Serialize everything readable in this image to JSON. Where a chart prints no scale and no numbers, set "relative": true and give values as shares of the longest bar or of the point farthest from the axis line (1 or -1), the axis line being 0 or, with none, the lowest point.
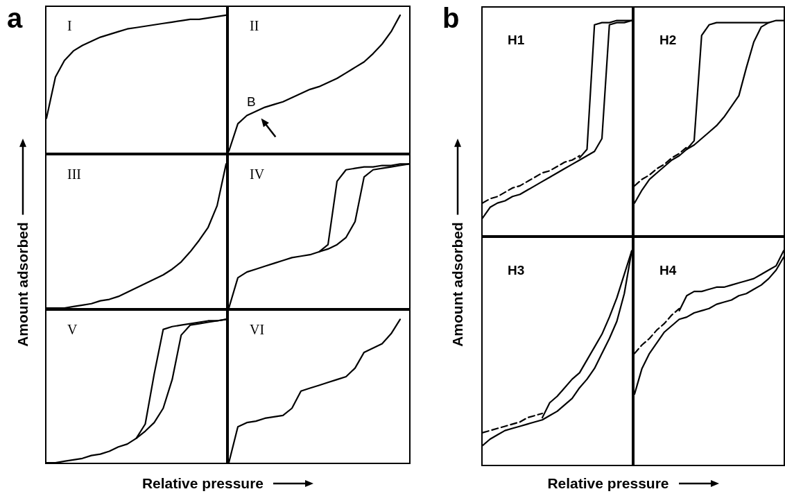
{
  "chart_data": [
    {
      "type": "line",
      "title": "I",
      "relative": true,
      "marker": "none",
      "annotations": [
        "a"
      ],
      "ylabel": "Amount adsorbed",
      "categories": [
        null,
        null,
        null,
        null,
        null,
        null,
        null,
        null,
        null,
        null,
        null,
        null,
        null,
        null,
        null,
        null,
        null,
        null,
        null,
        null,
        null
      ],
      "series": [
        {
          "color": "#000000",
          "line_style": "solid",
          "values": [
            0.25,
            0.55,
            0.67,
            0.74,
            0.78,
            0.81,
            0.84,
            0.86,
            0.88,
            0.9,
            0.91,
            0.92,
            0.93,
            0.94,
            0.95,
            0.96,
            0.97,
            0.97,
            0.98,
            0.99,
            1
          ]
        }
      ]
    },
    {
      "type": "line",
      "title": "II",
      "relative": true,
      "marker": "none",
      "annotations": [
        "B"
      ],
      "categories": [
        null,
        null,
        null,
        null,
        null,
        null,
        null,
        null,
        null,
        null,
        null,
        null,
        null,
        null,
        null,
        null,
        null,
        null,
        null,
        null,
        null
      ],
      "series": [
        {
          "color": "#000000",
          "line_style": "solid",
          "values": [
            0.01,
            0.21,
            0.27,
            0.3,
            0.33,
            0.35,
            0.37,
            0.4,
            0.43,
            0.46,
            0.48,
            0.51,
            0.54,
            0.58,
            0.62,
            0.66,
            0.72,
            0.79,
            0.88,
            1,
            null
          ]
        }
      ]
    },
    {
      "type": "line",
      "title": "III",
      "relative": true,
      "marker": "none",
      "categories": [
        null,
        null,
        null,
        null,
        null,
        null,
        null,
        null,
        null,
        null,
        null,
        null,
        null,
        null,
        null,
        null,
        null,
        null,
        null,
        null,
        null
      ],
      "series": [
        {
          "color": "#000000",
          "line_style": "solid",
          "values": [
            0,
            0,
            0,
            0.01,
            0.02,
            0.03,
            0.05,
            0.06,
            0.08,
            0.11,
            0.14,
            0.17,
            0.2,
            0.23,
            0.27,
            0.32,
            0.39,
            0.47,
            0.56,
            0.71,
            1
          ]
        }
      ]
    },
    {
      "type": "line",
      "title": "IV",
      "relative": true,
      "marker": "none",
      "categories": [
        null,
        null,
        null,
        null,
        null,
        null,
        null,
        null,
        null,
        null,
        null,
        null,
        null,
        null,
        null,
        null,
        null,
        null,
        null,
        null,
        null
      ],
      "series": [
        {
          "color": "#000000",
          "line_style": "solid",
          "values": [
            0,
            0.21,
            0.25,
            0.27,
            0.29,
            0.31,
            0.33,
            0.35,
            0.36,
            0.37,
            0.39,
            0.41,
            0.44,
            0.49,
            0.6,
            0.91,
            0.96,
            0.97,
            0.98,
            0.99,
            1
          ]
        },
        {
          "color": "#000000",
          "line_style": "solid",
          "values": [
            null,
            null,
            null,
            null,
            null,
            null,
            null,
            null,
            null,
            null,
            0.39,
            0.44,
            0.88,
            0.96,
            0.97,
            0.98,
            0.98,
            0.99,
            0.99,
            1,
            1
          ]
        }
      ]
    },
    {
      "type": "line",
      "title": "V",
      "relative": true,
      "marker": "none",
      "xlabel": "Relative pressure",
      "categories": [
        null,
        null,
        null,
        null,
        null,
        null,
        null,
        null,
        null,
        null,
        null,
        null,
        null,
        null,
        null,
        null,
        null,
        null,
        null,
        null,
        null
      ],
      "series": [
        {
          "color": "#000000",
          "line_style": "solid",
          "values": [
            0,
            0,
            0.01,
            0.02,
            0.03,
            0.05,
            0.06,
            0.08,
            0.11,
            0.13,
            0.17,
            0.22,
            0.28,
            0.38,
            0.58,
            0.89,
            0.96,
            0.97,
            0.98,
            0.99,
            1
          ]
        },
        {
          "color": "#000000",
          "line_style": "solid",
          "values": [
            null,
            null,
            null,
            null,
            null,
            null,
            null,
            null,
            null,
            null,
            0.17,
            0.27,
            0.62,
            0.93,
            0.95,
            0.96,
            0.97,
            0.98,
            0.99,
            0.99,
            1
          ]
        }
      ]
    },
    {
      "type": "line",
      "title": "VI",
      "relative": true,
      "marker": "none",
      "categories": [
        null,
        null,
        null,
        null,
        null,
        null,
        null,
        null,
        null,
        null,
        null,
        null,
        null,
        null,
        null,
        null,
        null,
        null,
        null,
        null,
        null
      ],
      "series": [
        {
          "color": "#000000",
          "line_style": "solid",
          "values": [
            0,
            0.25,
            0.28,
            0.29,
            0.31,
            0.32,
            0.33,
            0.38,
            0.5,
            0.52,
            0.54,
            0.56,
            0.58,
            0.6,
            0.66,
            0.77,
            0.8,
            0.83,
            0.9,
            1,
            null
          ]
        }
      ]
    },
    {
      "type": "line",
      "title": "H1",
      "relative": true,
      "marker": "none",
      "annotations": [
        "b"
      ],
      "ylabel": "Amount adsorbed",
      "categories": [
        null,
        null,
        null,
        null,
        null,
        null,
        null,
        null,
        null,
        null,
        null,
        null,
        null,
        null,
        null,
        null,
        null,
        null,
        null,
        null,
        null
      ],
      "series": [
        {
          "color": "#000000",
          "line_style": "solid",
          "values": [
            0.08,
            0.13,
            0.15,
            0.16,
            0.18,
            0.19,
            0.21,
            0.23,
            0.25,
            0.27,
            0.29,
            0.31,
            0.33,
            0.35,
            0.37,
            0.39,
            0.45,
            0.98,
            0.99,
            0.99,
            1
          ]
        },
        {
          "color": "#000000",
          "line_style": "solid",
          "values": [
            null,
            null,
            null,
            null,
            null,
            null,
            null,
            null,
            null,
            null,
            null,
            null,
            null,
            0.36,
            0.4,
            0.98,
            0.99,
            0.99,
            1,
            1,
            1
          ]
        },
        {
          "color": "#000000",
          "line_style": "dashed",
          "values": [
            0.15,
            0.17,
            0.18,
            0.2,
            0.22,
            0.23,
            0.25,
            0.27,
            0.29,
            0.3,
            0.32,
            0.34,
            0.35,
            0.37,
            null,
            null,
            null,
            null,
            null,
            null,
            null
          ]
        }
      ]
    },
    {
      "type": "line",
      "title": "H2",
      "relative": true,
      "marker": "none",
      "categories": [
        null,
        null,
        null,
        null,
        null,
        null,
        null,
        null,
        null,
        null,
        null,
        null,
        null,
        null,
        null,
        null,
        null,
        null,
        null,
        null,
        null
      ],
      "series": [
        {
          "color": "#000000",
          "line_style": "solid",
          "values": [
            0.15,
            0.21,
            0.26,
            0.29,
            0.32,
            0.35,
            0.37,
            0.4,
            0.42,
            0.45,
            0.48,
            0.51,
            0.55,
            0.6,
            0.65,
            0.78,
            0.9,
            0.97,
            0.99,
            1,
            1
          ]
        },
        {
          "color": "#000000",
          "line_style": "solid",
          "values": [
            null,
            null,
            null,
            null,
            null,
            null,
            null,
            0.4,
            0.44,
            0.93,
            0.98,
            0.99,
            0.99,
            0.99,
            0.99,
            0.99,
            0.99,
            0.99,
            0.99,
            null,
            null
          ]
        },
        {
          "color": "#000000",
          "line_style": "dashed",
          "values": [
            0.23,
            0.26,
            0.28,
            0.31,
            0.33,
            0.36,
            0.38,
            0.41,
            null,
            null,
            null,
            null,
            null,
            null,
            null,
            null,
            null,
            null,
            null,
            null,
            null
          ]
        }
      ]
    },
    {
      "type": "line",
      "title": "H3",
      "relative": true,
      "marker": "none",
      "xlabel": "Relative pressure",
      "categories": [
        null,
        null,
        null,
        null,
        null,
        null,
        null,
        null,
        null,
        null,
        null,
        null,
        null,
        null,
        null,
        null,
        null,
        null,
        null,
        null,
        null
      ],
      "series": [
        {
          "color": "#000000",
          "line_style": "solid",
          "values": [
            0.09,
            0.12,
            0.14,
            0.16,
            0.17,
            0.18,
            0.19,
            0.2,
            0.21,
            0.23,
            0.25,
            0.28,
            0.31,
            0.36,
            0.4,
            0.45,
            0.52,
            0.59,
            0.67,
            0.8,
            1
          ]
        },
        {
          "color": "#000000",
          "line_style": "solid",
          "values": [
            null,
            null,
            null,
            null,
            null,
            null,
            null,
            null,
            0.22,
            0.29,
            0.32,
            0.36,
            0.4,
            0.43,
            0.49,
            0.55,
            0.61,
            0.69,
            0.78,
            0.89,
            1
          ]
        },
        {
          "color": "#000000",
          "line_style": "dashed",
          "values": [
            0.15,
            0.16,
            0.17,
            0.18,
            0.19,
            0.2,
            0.22,
            0.23,
            0.24,
            null,
            null,
            null,
            null,
            null,
            null,
            null,
            null,
            null,
            null,
            null,
            null
          ]
        }
      ]
    },
    {
      "type": "line",
      "title": "H4",
      "relative": true,
      "marker": "none",
      "categories": [
        null,
        null,
        null,
        null,
        null,
        null,
        null,
        null,
        null,
        null,
        null,
        null,
        null,
        null,
        null,
        null,
        null,
        null,
        null,
        null,
        null
      ],
      "series": [
        {
          "color": "#000000",
          "line_style": "solid",
          "values": [
            0.33,
            0.45,
            0.52,
            0.57,
            0.62,
            0.65,
            0.68,
            0.69,
            0.71,
            0.72,
            0.73,
            0.75,
            0.76,
            0.77,
            0.79,
            0.8,
            0.82,
            0.84,
            0.87,
            0.91,
            0.97
          ]
        },
        {
          "color": "#000000",
          "line_style": "solid",
          "values": [
            null,
            null,
            null,
            null,
            null,
            null,
            0.72,
            0.79,
            0.81,
            0.81,
            0.82,
            0.83,
            0.83,
            0.84,
            0.85,
            0.86,
            0.87,
            0.89,
            0.91,
            0.93,
            1
          ]
        },
        {
          "color": "#000000",
          "line_style": "dashed",
          "values": [
            0.52,
            0.56,
            0.59,
            0.63,
            0.66,
            0.7,
            0.73,
            null,
            null,
            null,
            null,
            null,
            null,
            null,
            null,
            null,
            null,
            null,
            null,
            null,
            null
          ]
        }
      ]
    }
  ]
}
